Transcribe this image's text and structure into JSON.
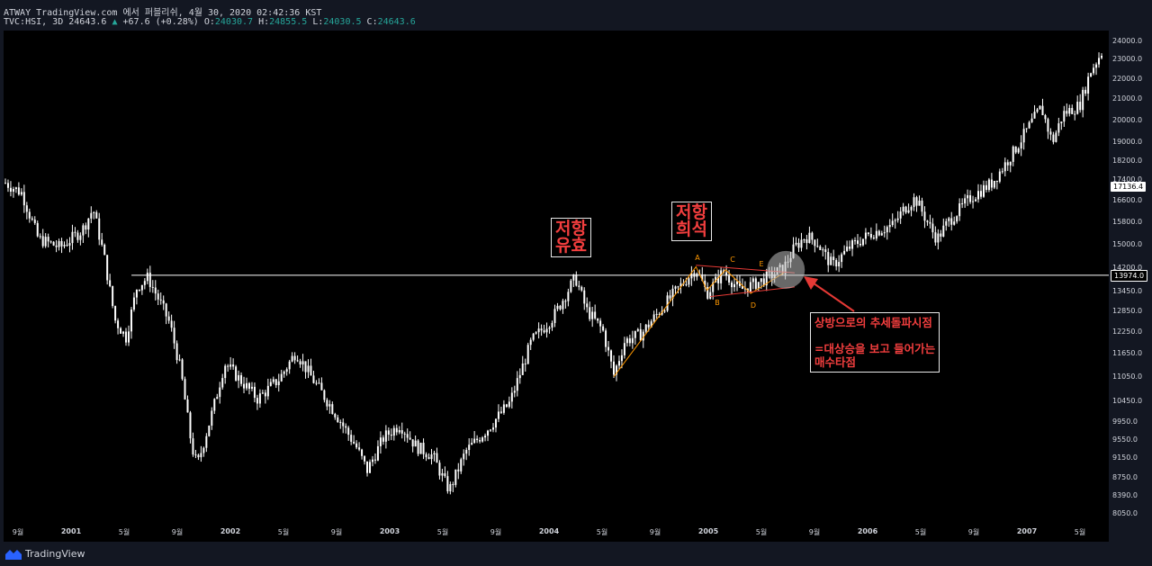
{
  "header": {
    "line1": "ATWAY TradingView.com 에서 퍼블리쉬, 4월 30, 2020 02:42:36 KST",
    "symbol": "TVC:HSI, 3D",
    "last": "24643.6",
    "change_arrow": "▲",
    "change": "+67.6 (+0.28%)",
    "o_label": "O:",
    "o_val": "24030.7",
    "h_label": "H:",
    "h_val": "24855.5",
    "l_label": "L:",
    "l_val": "24030.5",
    "c_label": "C:",
    "c_val": "24643.6"
  },
  "colors": {
    "candle": "#ffffff",
    "support": "#ffffff",
    "wave": "#ff9800",
    "trend": "#e53935",
    "annotation_text": "#f23e3e"
  },
  "price_tags": {
    "level": "13974.0",
    "current": "17136.4"
  },
  "annotations": {
    "box1": {
      "line1": "저항",
      "line2": "유효"
    },
    "box2": {
      "line1": "저항",
      "line2": "희석"
    },
    "note": {
      "line1": "상방으로의 추세돌파시점",
      "line2": "=대상승을 보고 들어가는",
      "line3": "매수타점"
    },
    "wave_points": [
      "A",
      "B",
      "C",
      "D",
      "E"
    ]
  },
  "footer": {
    "brand": "TradingView"
  },
  "chart_data": {
    "type": "candlestick",
    "title": "TVC:HSI, 3D",
    "y_ticks": [
      "24000.0",
      "23000.0",
      "22000.0",
      "21000.0",
      "20000.0",
      "19000.0",
      "18200.0",
      "17400.0",
      "16600.0",
      "15800.0",
      "15000.0",
      "14200.0",
      "13450.0",
      "12850.0",
      "12250.0",
      "11650.0",
      "11050.0",
      "10450.0",
      "9950.0",
      "9550.0",
      "9150.0",
      "8750.0",
      "8390.0",
      "8050.0"
    ],
    "x_ticks": [
      {
        "label": "9월",
        "year": false
      },
      {
        "label": "2001",
        "year": true
      },
      {
        "label": "5월",
        "year": false
      },
      {
        "label": "9월",
        "year": false
      },
      {
        "label": "2002",
        "year": true
      },
      {
        "label": "5월",
        "year": false
      },
      {
        "label": "9월",
        "year": false
      },
      {
        "label": "2003",
        "year": true
      },
      {
        "label": "5월",
        "year": false
      },
      {
        "label": "9월",
        "year": false
      },
      {
        "label": "2004",
        "year": true
      },
      {
        "label": "5월",
        "year": false
      },
      {
        "label": "9월",
        "year": false
      },
      {
        "label": "2005",
        "year": true
      },
      {
        "label": "5월",
        "year": false
      },
      {
        "label": "9월",
        "year": false
      },
      {
        "label": "2006",
        "year": true
      },
      {
        "label": "5월",
        "year": false
      },
      {
        "label": "9월",
        "year": false
      },
      {
        "label": "2007",
        "year": true
      },
      {
        "label": "5월",
        "year": false
      }
    ],
    "scale": "log",
    "ylim": [
      7900,
      24600
    ],
    "horizontal_line": 13974,
    "close_path": [
      {
        "t": 0.0,
        "v": 17300
      },
      {
        "t": 0.015,
        "v": 16900
      },
      {
        "t": 0.03,
        "v": 15200
      },
      {
        "t": 0.05,
        "v": 14900
      },
      {
        "t": 0.07,
        "v": 15500
      },
      {
        "t": 0.08,
        "v": 16300
      },
      {
        "t": 0.09,
        "v": 14600
      },
      {
        "t": 0.1,
        "v": 12600
      },
      {
        "t": 0.11,
        "v": 12100
      },
      {
        "t": 0.12,
        "v": 13600
      },
      {
        "t": 0.13,
        "v": 13900
      },
      {
        "t": 0.14,
        "v": 13200
      },
      {
        "t": 0.15,
        "v": 12500
      },
      {
        "t": 0.16,
        "v": 11200
      },
      {
        "t": 0.17,
        "v": 9400
      },
      {
        "t": 0.175,
        "v": 9000
      },
      {
        "t": 0.19,
        "v": 10300
      },
      {
        "t": 0.2,
        "v": 11400
      },
      {
        "t": 0.21,
        "v": 11100
      },
      {
        "t": 0.23,
        "v": 10500
      },
      {
        "t": 0.25,
        "v": 11000
      },
      {
        "t": 0.265,
        "v": 11700
      },
      {
        "t": 0.28,
        "v": 11000
      },
      {
        "t": 0.3,
        "v": 10200
      },
      {
        "t": 0.32,
        "v": 9400
      },
      {
        "t": 0.33,
        "v": 8900
      },
      {
        "t": 0.345,
        "v": 9600
      },
      {
        "t": 0.36,
        "v": 9900
      },
      {
        "t": 0.375,
        "v": 9400
      },
      {
        "t": 0.39,
        "v": 9200
      },
      {
        "t": 0.4,
        "v": 8700
      },
      {
        "t": 0.405,
        "v": 8500
      },
      {
        "t": 0.42,
        "v": 9300
      },
      {
        "t": 0.44,
        "v": 9800
      },
      {
        "t": 0.46,
        "v": 10400
      },
      {
        "t": 0.48,
        "v": 12000
      },
      {
        "t": 0.5,
        "v": 12700
      },
      {
        "t": 0.51,
        "v": 13300
      },
      {
        "t": 0.52,
        "v": 13900
      },
      {
        "t": 0.53,
        "v": 12900
      },
      {
        "t": 0.545,
        "v": 12300
      },
      {
        "t": 0.555,
        "v": 11100
      },
      {
        "t": 0.565,
        "v": 12000
      },
      {
        "t": 0.58,
        "v": 12200
      },
      {
        "t": 0.6,
        "v": 13000
      },
      {
        "t": 0.615,
        "v": 13600
      },
      {
        "t": 0.63,
        "v": 14200
      },
      {
        "t": 0.64,
        "v": 13400
      },
      {
        "t": 0.655,
        "v": 14100
      },
      {
        "t": 0.67,
        "v": 13500
      },
      {
        "t": 0.69,
        "v": 13800
      },
      {
        "t": 0.71,
        "v": 14200
      },
      {
        "t": 0.72,
        "v": 14900
      },
      {
        "t": 0.73,
        "v": 15300
      },
      {
        "t": 0.74,
        "v": 15100
      },
      {
        "t": 0.75,
        "v": 14500
      },
      {
        "t": 0.755,
        "v": 14300
      },
      {
        "t": 0.77,
        "v": 14900
      },
      {
        "t": 0.79,
        "v": 15400
      },
      {
        "t": 0.81,
        "v": 15700
      },
      {
        "t": 0.82,
        "v": 16300
      },
      {
        "t": 0.83,
        "v": 16700
      },
      {
        "t": 0.845,
        "v": 15500
      },
      {
        "t": 0.85,
        "v": 15200
      },
      {
        "t": 0.86,
        "v": 15800
      },
      {
        "t": 0.88,
        "v": 16700
      },
      {
        "t": 0.9,
        "v": 17300
      },
      {
        "t": 0.92,
        "v": 18600
      },
      {
        "t": 0.935,
        "v": 19800
      },
      {
        "t": 0.945,
        "v": 20600
      },
      {
        "t": 0.955,
        "v": 19000
      },
      {
        "t": 0.965,
        "v": 20300
      },
      {
        "t": 0.98,
        "v": 20700
      },
      {
        "t": 0.99,
        "v": 22400
      },
      {
        "t": 1.0,
        "v": 23400
      }
    ]
  }
}
